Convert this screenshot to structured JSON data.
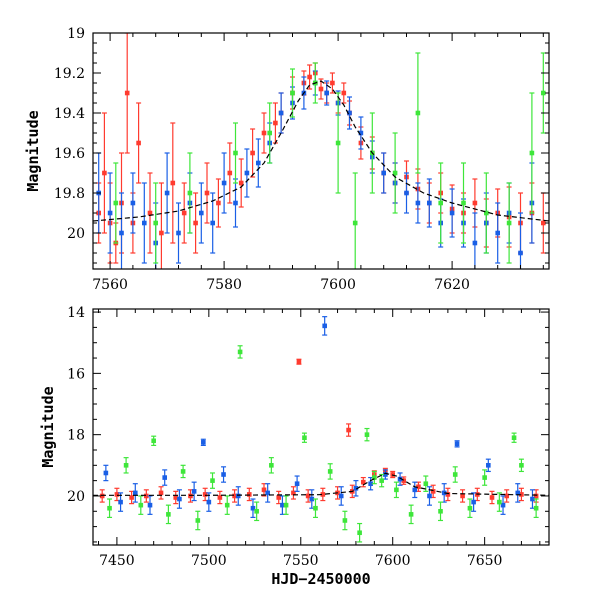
{
  "colors": {
    "red": "#ff3b2f",
    "blue": "#1a5fe6",
    "green": "#3ee63a",
    "model_line": "#000000"
  },
  "chart_data": [
    {
      "type": "scatter",
      "panel": "top",
      "xlabel": "",
      "ylabel": "Magnitude",
      "xlim": [
        7557,
        7637
      ],
      "ylim": [
        20.18,
        19.0
      ],
      "y_inverted": true,
      "x_ticks": [
        7560,
        7580,
        7600,
        7620
      ],
      "y_ticks": [
        19,
        19.2,
        19.4,
        19.6,
        19.8,
        20
      ],
      "y_tick_labels": [
        "19",
        "19.2",
        "19.4",
        "19.6",
        "19.8",
        "20"
      ],
      "model_curve": {
        "x": [
          7557,
          7565,
          7572,
          7578,
          7583,
          7587,
          7590,
          7593,
          7595,
          7597,
          7599,
          7601,
          7603,
          7606,
          7610,
          7615,
          7620,
          7628,
          7637
        ],
        "y": [
          19.94,
          19.92,
          19.89,
          19.84,
          19.77,
          19.65,
          19.5,
          19.34,
          19.26,
          19.24,
          19.28,
          19.36,
          19.47,
          19.6,
          19.72,
          19.8,
          19.85,
          19.91,
          19.94
        ]
      },
      "series": [
        {
          "color": "red",
          "x": [
            7558,
            7559,
            7560,
            7561,
            7562,
            7563,
            7564,
            7565,
            7567,
            7569,
            7571,
            7573,
            7575,
            7577,
            7579,
            7581,
            7583,
            7585,
            7587,
            7589,
            7590,
            7592,
            7594,
            7595,
            7596,
            7597,
            7598,
            7599,
            7600,
            7601,
            7602,
            7604,
            7606,
            7608,
            7610,
            7612,
            7614,
            7616,
            7618,
            7620,
            7622,
            7624,
            7626,
            7628,
            7630,
            7632,
            7634,
            7636
          ],
          "y": [
            19.9,
            19.7,
            19.95,
            20.05,
            19.85,
            19.3,
            19.95,
            19.55,
            19.9,
            20.0,
            19.75,
            19.9,
            19.95,
            19.8,
            19.85,
            19.7,
            19.75,
            19.6,
            19.5,
            19.45,
            19.4,
            19.3,
            19.25,
            19.22,
            19.2,
            19.28,
            19.3,
            19.25,
            19.35,
            19.3,
            19.4,
            19.55,
            19.6,
            19.7,
            19.75,
            19.72,
            19.78,
            19.85,
            19.8,
            19.88,
            19.9,
            19.85,
            19.95,
            19.9,
            19.92,
            19.95,
            19.9,
            19.95
          ],
          "err": [
            0.15,
            0.3,
            0.2,
            0.1,
            0.25,
            0.3,
            0.15,
            0.2,
            0.2,
            0.25,
            0.3,
            0.15,
            0.15,
            0.15,
            0.12,
            0.15,
            0.12,
            0.12,
            0.1,
            0.1,
            0.1,
            0.08,
            0.06,
            0.06,
            0.05,
            0.05,
            0.05,
            0.05,
            0.05,
            0.05,
            0.06,
            0.08,
            0.08,
            0.1,
            0.1,
            0.08,
            0.1,
            0.1,
            0.1,
            0.12,
            0.1,
            0.12,
            0.12,
            0.12,
            0.15,
            0.15,
            0.15,
            0.15
          ]
        },
        {
          "color": "blue",
          "x": [
            7558,
            7560,
            7562,
            7564,
            7566,
            7568,
            7570,
            7572,
            7574,
            7576,
            7578,
            7580,
            7582,
            7584,
            7586,
            7588,
            7590,
            7592,
            7594,
            7596,
            7598,
            7600,
            7602,
            7604,
            7606,
            7608,
            7610,
            7612,
            7614,
            7616,
            7618,
            7620,
            7622,
            7624,
            7626,
            7628,
            7630,
            7632,
            7634
          ],
          "y": [
            19.8,
            19.9,
            20.0,
            19.85,
            19.95,
            20.05,
            19.8,
            20.0,
            19.85,
            19.9,
            19.95,
            19.75,
            19.85,
            19.7,
            19.65,
            19.55,
            19.4,
            19.35,
            19.3,
            19.25,
            19.3,
            19.35,
            19.4,
            19.5,
            19.62,
            19.7,
            19.75,
            19.8,
            19.85,
            19.85,
            19.95,
            19.9,
            19.95,
            20.05,
            19.95,
            20.0,
            19.9,
            20.1,
            19.85
          ],
          "err": [
            0.2,
            0.2,
            0.2,
            0.15,
            0.2,
            0.2,
            0.2,
            0.15,
            0.15,
            0.15,
            0.15,
            0.15,
            0.12,
            0.12,
            0.12,
            0.1,
            0.1,
            0.08,
            0.08,
            0.06,
            0.06,
            0.06,
            0.08,
            0.08,
            0.08,
            0.1,
            0.1,
            0.1,
            0.1,
            0.12,
            0.12,
            0.12,
            0.12,
            0.15,
            0.15,
            0.15,
            0.15,
            0.2,
            0.2
          ]
        },
        {
          "color": "green",
          "x": [
            7561,
            7568,
            7574,
            7582,
            7588,
            7592,
            7596,
            7600,
            7603,
            7606,
            7610,
            7614,
            7618,
            7622,
            7626,
            7630,
            7634,
            7636
          ],
          "y": [
            19.85,
            19.95,
            19.8,
            19.6,
            19.5,
            19.3,
            19.25,
            19.55,
            19.95,
            19.6,
            19.7,
            19.4,
            19.85,
            19.85,
            19.9,
            19.95,
            19.6,
            19.3
          ],
          "err": [
            0.2,
            0.2,
            0.2,
            0.15,
            0.15,
            0.12,
            0.1,
            0.25,
            0.25,
            0.2,
            0.2,
            0.3,
            0.2,
            0.2,
            0.2,
            0.2,
            0.3,
            0.2
          ]
        }
      ]
    },
    {
      "type": "scatter",
      "panel": "bottom",
      "xlabel": "HJD−2450000",
      "ylabel": "Magnitude",
      "xlim": [
        7437,
        7685
      ],
      "ylim": [
        21.6,
        13.9
      ],
      "y_inverted": true,
      "x_ticks": [
        7450,
        7500,
        7550,
        7600,
        7650
      ],
      "y_ticks": [
        14,
        16,
        18,
        20
      ],
      "y_tick_labels": [
        "14",
        "16",
        "18",
        "20"
      ],
      "model_curve": {
        "x": [
          7437,
          7500,
          7560,
          7578,
          7588,
          7596,
          7602,
          7612,
          7630,
          7685
        ],
        "y": [
          19.98,
          19.98,
          19.96,
          19.85,
          19.5,
          19.26,
          19.35,
          19.7,
          19.92,
          19.98
        ]
      },
      "series": [
        {
          "color": "red",
          "x": [
            7442,
            7450,
            7458,
            7466,
            7474,
            7482,
            7490,
            7498,
            7506,
            7514,
            7522,
            7530,
            7538,
            7546,
            7549,
            7554,
            7562,
            7570,
            7576,
            7578,
            7584,
            7590,
            7596,
            7600,
            7606,
            7614,
            7622,
            7630,
            7638,
            7646,
            7654,
            7662,
            7670,
            7678
          ],
          "y": [
            20.0,
            19.95,
            20.05,
            20.0,
            19.9,
            20.05,
            20.0,
            19.95,
            20.05,
            20.0,
            19.95,
            19.8,
            20.05,
            19.9,
            15.62,
            20.0,
            19.95,
            19.9,
            17.85,
            19.85,
            19.55,
            19.3,
            19.2,
            19.3,
            19.5,
            19.7,
            19.85,
            19.95,
            20.0,
            19.95,
            20.05,
            20.0,
            19.95,
            20.0
          ],
          "err": [
            0.2,
            0.2,
            0.2,
            0.2,
            0.2,
            0.2,
            0.2,
            0.2,
            0.2,
            0.2,
            0.2,
            0.2,
            0.2,
            0.2,
            0.08,
            0.2,
            0.2,
            0.2,
            0.2,
            0.2,
            0.15,
            0.12,
            0.1,
            0.1,
            0.12,
            0.15,
            0.2,
            0.2,
            0.2,
            0.2,
            0.2,
            0.2,
            0.2,
            0.2
          ]
        },
        {
          "color": "blue",
          "x": [
            7444,
            7452,
            7460,
            7468,
            7476,
            7484,
            7492,
            7497,
            7500,
            7508,
            7516,
            7524,
            7532,
            7540,
            7548,
            7556,
            7563,
            7572,
            7580,
            7588,
            7596,
            7604,
            7612,
            7620,
            7628,
            7635,
            7644,
            7652,
            7660,
            7668,
            7676
          ],
          "y": [
            19.25,
            20.2,
            19.9,
            20.3,
            19.4,
            20.1,
            19.85,
            18.25,
            20.2,
            19.3,
            20.0,
            20.4,
            19.9,
            20.3,
            19.6,
            20.1,
            14.45,
            20.0,
            19.75,
            19.6,
            19.3,
            19.45,
            19.8,
            20.0,
            19.9,
            18.3,
            20.2,
            19.0,
            20.3,
            19.9,
            20.1
          ],
          "err": [
            0.25,
            0.3,
            0.3,
            0.3,
            0.25,
            0.3,
            0.3,
            0.1,
            0.3,
            0.25,
            0.3,
            0.3,
            0.3,
            0.3,
            0.25,
            0.3,
            0.3,
            0.3,
            0.25,
            0.2,
            0.15,
            0.2,
            0.25,
            0.3,
            0.3,
            0.1,
            0.3,
            0.2,
            0.3,
            0.3,
            0.3
          ]
        },
        {
          "color": "green",
          "x": [
            7446,
            7455,
            7463,
            7470,
            7478,
            7486,
            7494,
            7502,
            7510,
            7517,
            7526,
            7534,
            7542,
            7552,
            7558,
            7566,
            7574,
            7582,
            7586,
            7590,
            7594,
            7602,
            7610,
            7618,
            7626,
            7634,
            7642,
            7650,
            7658,
            7666,
            7670,
            7678
          ],
          "y": [
            20.4,
            19.0,
            20.3,
            18.2,
            20.6,
            19.2,
            20.8,
            19.5,
            20.3,
            15.3,
            20.5,
            19.0,
            20.3,
            18.1,
            20.4,
            19.2,
            20.8,
            21.2,
            18.0,
            19.4,
            19.5,
            19.8,
            20.6,
            19.6,
            20.5,
            19.3,
            20.4,
            19.4,
            20.2,
            18.1,
            19.0,
            20.4
          ],
          "err": [
            0.3,
            0.25,
            0.3,
            0.15,
            0.3,
            0.2,
            0.3,
            0.25,
            0.3,
            0.2,
            0.3,
            0.25,
            0.3,
            0.15,
            0.3,
            0.25,
            0.3,
            0.3,
            0.2,
            0.2,
            0.2,
            0.25,
            0.3,
            0.25,
            0.3,
            0.25,
            0.3,
            0.25,
            0.3,
            0.15,
            0.2,
            0.3
          ]
        }
      ]
    }
  ]
}
